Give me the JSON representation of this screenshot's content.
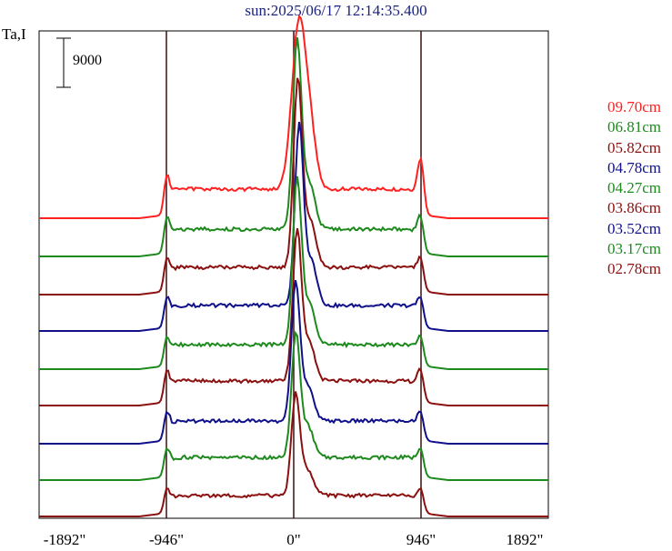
{
  "chart_data": {
    "type": "line",
    "title": "sun:2025/06/17 12:14:35.400",
    "ylabel": "Ta,I",
    "scale_bar_label": "9000",
    "xlabel": "",
    "x_ticks": [
      "-1892\"",
      "-946\"",
      "0\"",
      "946\"",
      "1892\""
    ],
    "x_tick_values": [
      -1892,
      -946,
      0,
      946,
      1892
    ],
    "xlim": [
      -1892,
      1892
    ],
    "vertical_markers": [
      -946,
      0,
      946
    ],
    "series": [
      {
        "name": "09.70cm",
        "color": "#ff2020",
        "baseline": 240,
        "peak": 185,
        "limb": 55,
        "plateau": 32,
        "core_offset": 40
      },
      {
        "name": "06.81cm",
        "color": "#1e8a1e",
        "baseline": 282,
        "peak": 205,
        "limb": 50,
        "plateau": 30,
        "core_offset": 25
      },
      {
        "name": "05.82cm",
        "color": "#8b1010",
        "baseline": 324,
        "peak": 205,
        "limb": 45,
        "plateau": 30,
        "core_offset": 30
      },
      {
        "name": "04.78cm",
        "color": "#10108b",
        "baseline": 364,
        "peak": 195,
        "limb": 40,
        "plateau": 28,
        "core_offset": 40
      },
      {
        "name": "04.27cm",
        "color": "#1e8a1e",
        "baseline": 406,
        "peak": 180,
        "limb": 40,
        "plateau": 27,
        "core_offset": 25
      },
      {
        "name": "03.86cm",
        "color": "#8b1010",
        "baseline": 446,
        "peak": 165,
        "limb": 45,
        "plateau": 27,
        "core_offset": 25
      },
      {
        "name": "03.52cm",
        "color": "#10108b",
        "baseline": 488,
        "peak": 150,
        "limb": 40,
        "plateau": 25,
        "core_offset": 15
      },
      {
        "name": "03.17cm",
        "color": "#1e8a1e",
        "baseline": 528,
        "peak": 135,
        "limb": 40,
        "plateau": 25,
        "core_offset": 15
      },
      {
        "name": "02.78cm",
        "color": "#8b1010",
        "baseline": 568,
        "peak": 110,
        "limb": 35,
        "plateau": 23,
        "core_offset": 15
      }
    ]
  }
}
